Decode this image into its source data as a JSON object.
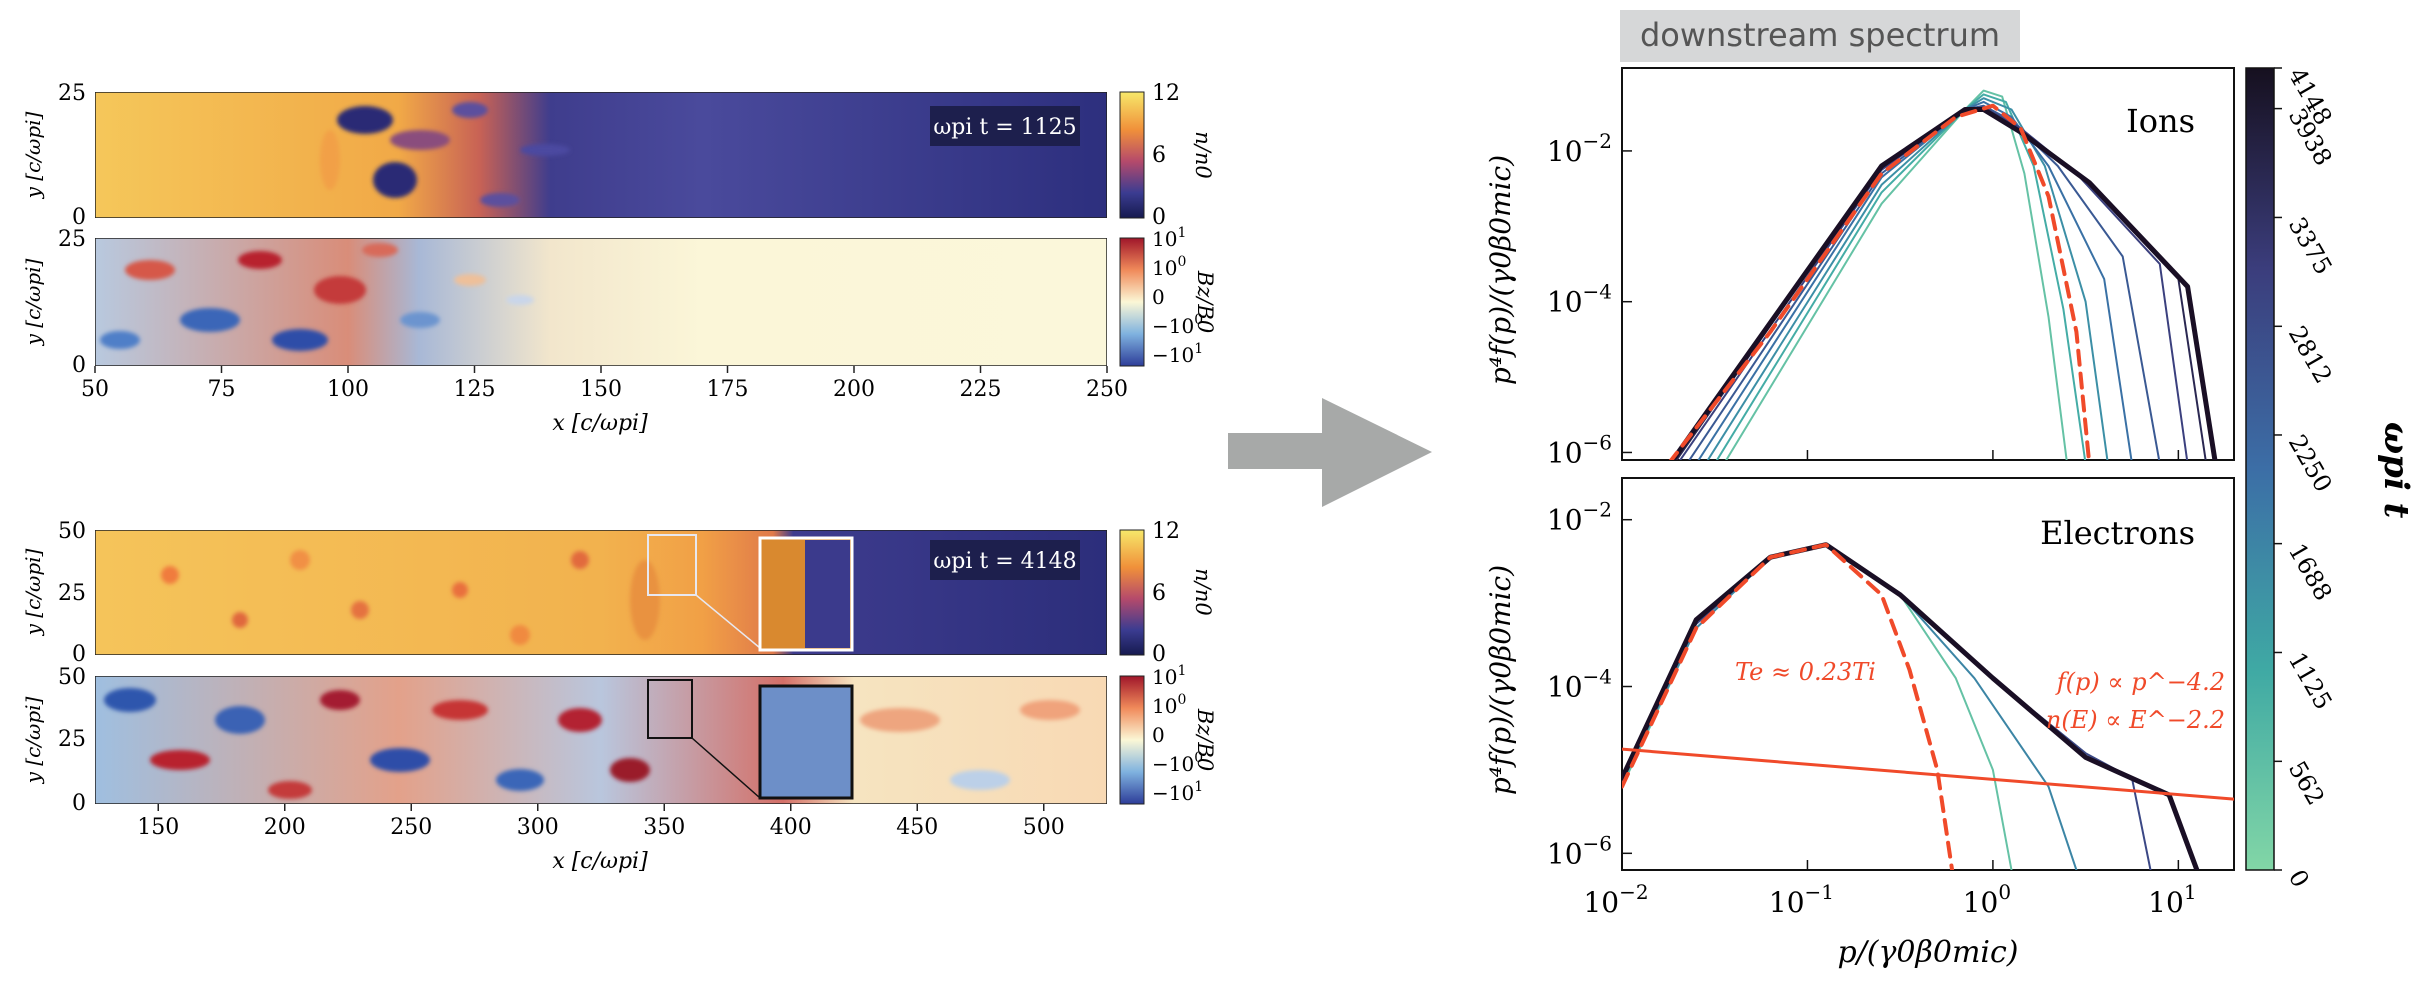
{
  "chart_data": [
    {
      "type": "heatmap",
      "panel": "left-top",
      "time_label": "ωpi t = 1125",
      "rows": [
        {
          "field": "density",
          "ylabel": "y [c/ωpi]",
          "yticks": [
            "25",
            "0"
          ],
          "ylim": [
            0,
            25
          ],
          "colorbar_label": "n/n0",
          "colorbar_ticks": [
            "12",
            "6",
            "0"
          ],
          "colormap": "plasma-like (dark blue → orange → yellow)"
        },
        {
          "field": "magnetic",
          "ylabel": "y [c/ωpi]",
          "yticks": [
            "25",
            "0"
          ],
          "ylim": [
            0,
            25
          ],
          "colorbar_label": "Bz/B0",
          "colorbar_ticks": [
            "10^1",
            "10^0",
            "0",
            "−10^0",
            "−10^1"
          ],
          "colormap": "diverging (blue → cream → red)"
        }
      ],
      "xlabel": "x [c/ωpi]",
      "xticks": [
        "50",
        "75",
        "100",
        "125",
        "150",
        "175",
        "200",
        "225",
        "250"
      ],
      "xlim": [
        50,
        250
      ],
      "shock_position_x": 110
    },
    {
      "type": "heatmap",
      "panel": "left-bottom",
      "time_label": "ωpi t = 4148",
      "rows": [
        {
          "field": "density",
          "ylabel": "y [c/ωpi]",
          "yticks": [
            "50",
            "25",
            "0"
          ],
          "ylim": [
            0,
            50
          ],
          "colorbar_label": "n/n0",
          "colorbar_ticks": [
            "12",
            "6",
            "0"
          ]
        },
        {
          "field": "magnetic",
          "ylabel": "y [c/ωpi]",
          "yticks": [
            "50",
            "25",
            "0"
          ],
          "ylim": [
            0,
            50
          ],
          "colorbar_label": "Bz/B0",
          "colorbar_ticks": [
            "10^1",
            "10^0",
            "0",
            "−10^0",
            "−10^1"
          ]
        }
      ],
      "xlabel": "x [c/ωpi]",
      "xticks": [
        "150",
        "200",
        "250",
        "300",
        "350",
        "400",
        "450",
        "500"
      ],
      "xlim": [
        125,
        525
      ],
      "shock_position_x": 350,
      "zoom_inset": true
    },
    {
      "type": "line",
      "panel": "right",
      "title": "downstream spectrum",
      "xlabel": "p/(γ0β0mic)",
      "ylabel": "p⁴f(p)/(γ0β0mic)",
      "xscale": "log",
      "yscale": "log",
      "xlim_log10": [
        -2,
        1.3
      ],
      "xticks": [
        {
          "base": "10",
          "exp": "−2"
        },
        {
          "base": "10",
          "exp": "−1"
        },
        {
          "base": "10",
          "exp": "0"
        },
        {
          "base": "10",
          "exp": "1"
        }
      ],
      "colorbar": {
        "label": "ωpi t",
        "ticks": [
          "4148",
          "3938",
          "3375",
          "2812",
          "2250",
          "1688",
          "1125",
          "562",
          "0"
        ],
        "range": [
          0,
          4148
        ],
        "colors": [
          "#7fd3a4",
          "#3ea8a6",
          "#3a6ea5",
          "#3b3f7d",
          "#1a0f25"
        ]
      },
      "subplots": [
        {
          "name": "Ions",
          "ylim_log10": [
            -6.1,
            -0.9
          ],
          "yticks": [
            {
              "base": "10",
              "exp": "−2"
            },
            {
              "base": "10",
              "exp": "−4"
            },
            {
              "base": "10",
              "exp": "−6"
            }
          ],
          "series": [
            {
              "name": "ωpi t=562",
              "points": [
                [
                  -1.45,
                  -6.15
                ],
                [
                  -0.6,
                  -2.7
                ],
                [
                  -0.15,
                  -1.45
                ],
                [
                  -0.05,
                  -1.2
                ],
                [
                  0.05,
                  -1.28
                ],
                [
                  0.17,
                  -2.3
                ],
                [
                  0.3,
                  -4.2
                ],
                [
                  0.4,
                  -6.15
                ]
              ]
            },
            {
              "name": "ωpi t=1125",
              "points": [
                [
                  -1.5,
                  -6.15
                ],
                [
                  -0.6,
                  -2.55
                ],
                [
                  -0.15,
                  -1.45
                ],
                [
                  -0.05,
                  -1.25
                ],
                [
                  0.07,
                  -1.35
                ],
                [
                  0.22,
                  -2.2
                ],
                [
                  0.38,
                  -4.1
                ],
                [
                  0.5,
                  -6.15
                ]
              ]
            },
            {
              "name": "ωpi t=1688",
              "points": [
                [
                  -1.55,
                  -6.15
                ],
                [
                  -0.6,
                  -2.45
                ],
                [
                  -0.15,
                  -1.45
                ],
                [
                  -0.05,
                  -1.3
                ],
                [
                  0.1,
                  -1.45
                ],
                [
                  0.28,
                  -2.2
                ],
                [
                  0.5,
                  -4.0
                ],
                [
                  0.62,
                  -6.15
                ]
              ]
            },
            {
              "name": "ωpi t=2250",
              "points": [
                [
                  -1.6,
                  -6.15
                ],
                [
                  -0.6,
                  -2.35
                ],
                [
                  -0.15,
                  -1.45
                ],
                [
                  -0.05,
                  -1.35
                ],
                [
                  0.1,
                  -1.55
                ],
                [
                  0.3,
                  -2.2
                ],
                [
                  0.6,
                  -3.7
                ],
                [
                  0.75,
                  -6.15
                ]
              ]
            },
            {
              "name": "ωpi t=2812",
              "points": [
                [
                  -1.65,
                  -6.15
                ],
                [
                  -0.6,
                  -2.3
                ],
                [
                  -0.15,
                  -1.45
                ],
                [
                  -0.05,
                  -1.4
                ],
                [
                  0.1,
                  -1.6
                ],
                [
                  0.35,
                  -2.2
                ],
                [
                  0.7,
                  -3.4
                ],
                [
                  0.9,
                  -6.15
                ]
              ]
            },
            {
              "name": "ωpi t=3375",
              "points": [
                [
                  -1.7,
                  -6.15
                ],
                [
                  -0.6,
                  -2.25
                ],
                [
                  -0.15,
                  -1.45
                ],
                [
                  -0.05,
                  -1.42
                ],
                [
                  0.15,
                  -1.7
                ],
                [
                  0.45,
                  -2.3
                ],
                [
                  0.9,
                  -3.5
                ],
                [
                  1.05,
                  -6.15
                ]
              ]
            },
            {
              "name": "ωpi t=3938",
              "points": [
                [
                  -1.72,
                  -6.15
                ],
                [
                  -0.6,
                  -2.2
                ],
                [
                  -0.15,
                  -1.45
                ],
                [
                  -0.05,
                  -1.45
                ],
                [
                  0.15,
                  -1.75
                ],
                [
                  0.5,
                  -2.4
                ],
                [
                  1.0,
                  -3.7
                ],
                [
                  1.15,
                  -6.15
                ]
              ]
            },
            {
              "name": "ωpi t=4148",
              "points": [
                [
                  -1.74,
                  -6.15
                ],
                [
                  -0.6,
                  -2.2
                ],
                [
                  -0.15,
                  -1.45
                ],
                [
                  -0.05,
                  -1.45
                ],
                [
                  0.15,
                  -1.75
                ],
                [
                  0.52,
                  -2.42
                ],
                [
                  1.05,
                  -3.8
                ],
                [
                  1.2,
                  -6.15
                ]
              ]
            },
            {
              "name": "Maxwellian fit",
              "style": "dashed",
              "color": "#f04a2a",
              "points": [
                [
                  -1.75,
                  -6.15
                ],
                [
                  -1.2,
                  -4.4
                ],
                [
                  -0.6,
                  -2.3
                ],
                [
                  -0.2,
                  -1.55
                ],
                [
                  0,
                  -1.4
                ],
                [
                  0.15,
                  -1.7
                ],
                [
                  0.3,
                  -2.6
                ],
                [
                  0.45,
                  -4.4
                ],
                [
                  0.52,
                  -6.15
                ]
              ]
            }
          ]
        },
        {
          "name": "Electrons",
          "ylim_log10": [
            -6.2,
            -1.5
          ],
          "yticks": [
            {
              "base": "10",
              "exp": "−2"
            },
            {
              "base": "10",
              "exp": "−4"
            },
            {
              "base": "10",
              "exp": "−6"
            }
          ],
          "temperature_annotation": "Te ≈ 0.23Ti",
          "powerlaw_annotation_1": "f(p) ∝ p^−4.2",
          "powerlaw_annotation_2": "n(E) ∝ E^−2.2",
          "series": [
            {
              "name": "ωpi t=562",
              "points": [
                [
                  -2,
                  -5.2
                ],
                [
                  -1.6,
                  -3.3
                ],
                [
                  -1.2,
                  -2.45
                ],
                [
                  -0.9,
                  -2.3
                ],
                [
                  -0.5,
                  -2.9
                ],
                [
                  -0.2,
                  -3.9
                ],
                [
                  0,
                  -5.0
                ],
                [
                  0.1,
                  -6.2
                ]
              ]
            },
            {
              "name": "ωpi t=1688",
              "points": [
                [
                  -2,
                  -5.15
                ],
                [
                  -1.6,
                  -3.3
                ],
                [
                  -1.2,
                  -2.45
                ],
                [
                  -0.9,
                  -2.3
                ],
                [
                  -0.5,
                  -2.9
                ],
                [
                  -0.1,
                  -3.9
                ],
                [
                  0.3,
                  -5.2
                ],
                [
                  0.45,
                  -6.2
                ]
              ]
            },
            {
              "name": "ωpi t=2812",
              "points": [
                [
                  -2,
                  -5.1
                ],
                [
                  -1.6,
                  -3.25
                ],
                [
                  -1.2,
                  -2.45
                ],
                [
                  -0.9,
                  -2.3
                ],
                [
                  -0.5,
                  -2.9
                ],
                [
                  0,
                  -3.9
                ],
                [
                  0.5,
                  -4.8
                ],
                [
                  0.75,
                  -5.1
                ],
                [
                  0.85,
                  -6.2
                ]
              ]
            },
            {
              "name": "ωpi t=4148",
              "points": [
                [
                  -2,
                  -5.1
                ],
                [
                  -1.6,
                  -3.2
                ],
                [
                  -1.2,
                  -2.45
                ],
                [
                  -0.9,
                  -2.3
                ],
                [
                  -0.5,
                  -2.9
                ],
                [
                  0,
                  -3.9
                ],
                [
                  0.5,
                  -4.85
                ],
                [
                  0.75,
                  -5.1
                ],
                [
                  0.95,
                  -5.3
                ],
                [
                  1.1,
                  -6.2
                ]
              ]
            },
            {
              "name": "Maxwellian fit",
              "style": "dashed",
              "color": "#f04a2a",
              "points": [
                [
                  -2,
                  -5.2
                ],
                [
                  -1.6,
                  -3.3
                ],
                [
                  -1.2,
                  -2.45
                ],
                [
                  -0.9,
                  -2.3
                ],
                [
                  -0.6,
                  -2.9
                ],
                [
                  -0.45,
                  -3.8
                ],
                [
                  -0.3,
                  -5.0
                ],
                [
                  -0.22,
                  -6.2
                ]
              ]
            },
            {
              "name": "power law p^-4.2",
              "style": "solid",
              "color": "#f04a2a",
              "points": [
                [
                  -2,
                  -4.75
                ],
                [
                  1.3,
                  -5.35
                ]
              ]
            }
          ]
        }
      ]
    }
  ]
}
